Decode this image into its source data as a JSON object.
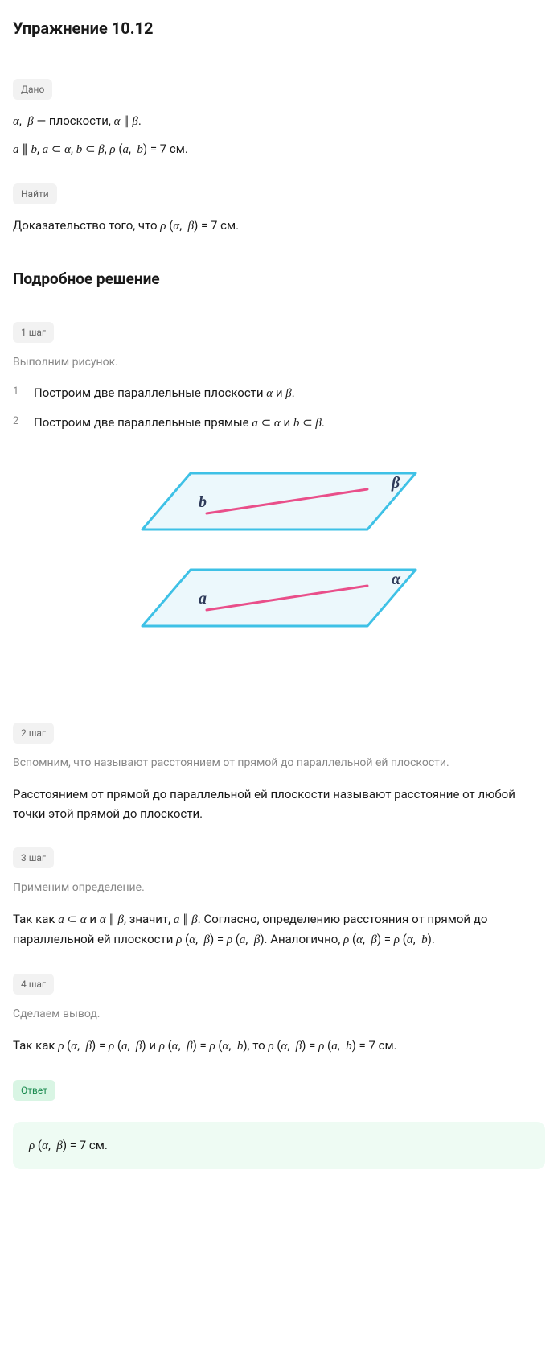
{
  "title": "Упражнение 10.12",
  "labels": {
    "dano": "Дано",
    "najti": "Найти",
    "step1": "1 шаг",
    "step2": "2 шаг",
    "step3": "3 шаг",
    "step4": "4 шаг",
    "otvet": "Ответ"
  },
  "dano": {
    "line1_html": "<span class='math'>α</span>,&nbsp;&nbsp;<span class='math'>β</span> — плоскости, <span class='math'>α</span> ∥ <span class='math'>β</span>.",
    "line2_html": "<span class='math'>a</span> ∥ <span class='math'>b</span>, <span class='math'>a</span> ⊂ <span class='math'>α</span>, <span class='math'>b</span> ⊂ <span class='math'>β</span>, <span class='math'>ρ</span> (<span class='math'>a</span>,&nbsp;&nbsp;<span class='math'>b</span>) = 7 см."
  },
  "najti_html": "Доказательство того, что <span class='math'>ρ</span> (<span class='math'>α</span>,&nbsp;&nbsp;<span class='math'>β</span>) = 7 см.",
  "section_title": "Подробное решение",
  "step1": {
    "sub": "Выполним рисунок.",
    "items": [
      "Построим две параллельные плоскости <span class='math'>α</span> и <span class='math'>β</span>.",
      "Построим две параллельные прямые <span class='math'>a</span> ⊂ <span class='math'>α</span> и <span class='math'>b</span> ⊂ <span class='math'>β</span>."
    ]
  },
  "diagram": {
    "plane_fill": "#ecf8fc",
    "plane_stroke": "#3ec1e6",
    "line_color": "#e94f8a",
    "label_color": "#2e3a59",
    "labels": {
      "top_plane": "β",
      "top_line": "b",
      "bot_plane": "α",
      "bot_line": "a"
    }
  },
  "step2": {
    "sub": "Вспомним, что называют расстоянием от прямой до параллельной ей плоскости.",
    "text": "Расстоянием от прямой до параллельной ей плоскости называют расстояние от любой точки этой прямой до плоскости."
  },
  "step3": {
    "sub": "Применим определение.",
    "text_html": "Так как <span class='math'>a</span> ⊂ <span class='math'>α</span> и <span class='math'>α</span> ∥ <span class='math'>β</span>, значит, <span class='math'>a</span> ∥ <span class='math'>β</span>. Согласно, определению расстояния от прямой до параллельной ей плоскости <span class='math'>ρ</span> (<span class='math'>α</span>,&nbsp;&nbsp;<span class='math'>β</span>) = <span class='math'>ρ</span> (<span class='math'>a</span>,&nbsp;&nbsp;<span class='math'>β</span>). Аналогично, <span class='math'>ρ</span> (<span class='math'>α</span>,&nbsp;&nbsp;<span class='math'>β</span>) = <span class='math'>ρ</span> (<span class='math'>α</span>,&nbsp;&nbsp;<span class='math'>b</span>)."
  },
  "step4": {
    "sub": "Сделаем вывод.",
    "text_html": "Так как <span class='math'>ρ</span> (<span class='math'>α</span>,&nbsp;&nbsp;<span class='math'>β</span>) = <span class='math'>ρ</span> (<span class='math'>a</span>,&nbsp;&nbsp;<span class='math'>β</span>) и <span class='math'>ρ</span> (<span class='math'>α</span>,&nbsp;&nbsp;<span class='math'>β</span>) = <span class='math'>ρ</span> (<span class='math'>α</span>,&nbsp;&nbsp;<span class='math'>b</span>), то <span class='math'>ρ</span> (<span class='math'>α</span>,&nbsp;&nbsp;<span class='math'>β</span>) = <span class='math'>ρ</span> (<span class='math'>a</span>,&nbsp;&nbsp;<span class='math'>b</span>) = 7 см."
  },
  "answer_html": "<span class='math'>ρ</span> (<span class='math'>α</span>,&nbsp;&nbsp;<span class='math'>β</span>) = 7 см."
}
